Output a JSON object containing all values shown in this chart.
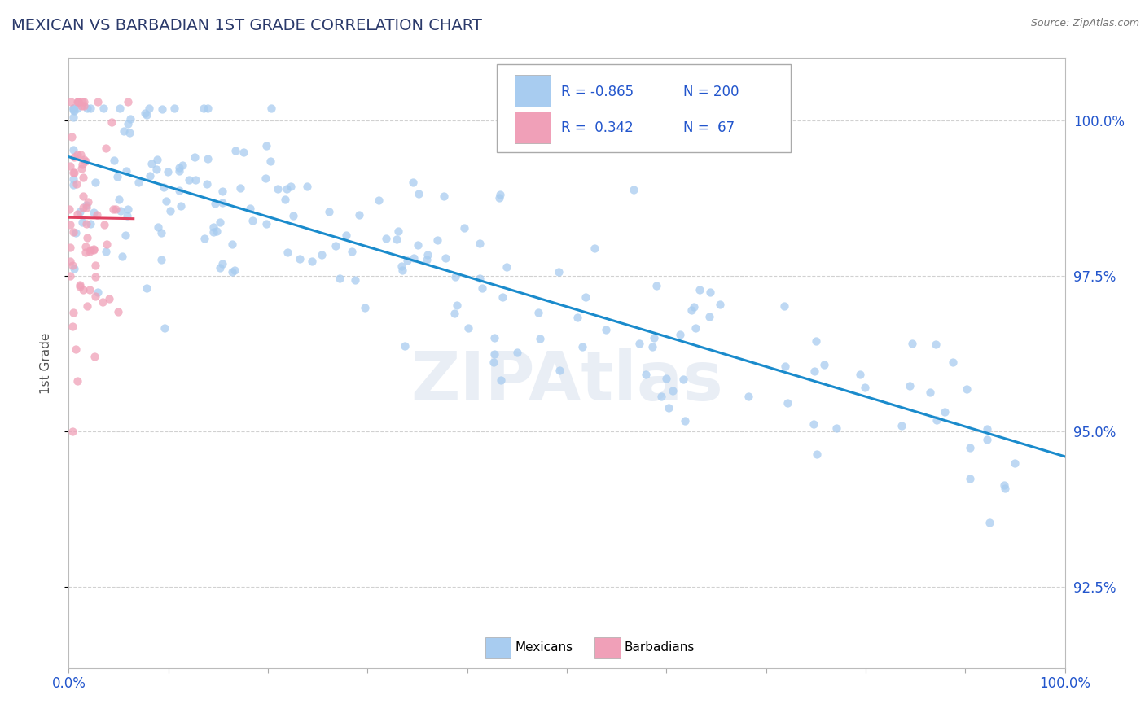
{
  "title": "MEXICAN VS BARBADIAN 1ST GRADE CORRELATION CHART",
  "source": "Source: ZipAtlas.com",
  "ylabel": "1st Grade",
  "ytick_labels": [
    "92.5%",
    "95.0%",
    "97.5%",
    "100.0%"
  ],
  "ytick_values": [
    92.5,
    95.0,
    97.5,
    100.0
  ],
  "legend_labels": [
    "Mexicans",
    "Barbadians"
  ],
  "legend_r_values": [
    "-0.865",
    "0.342"
  ],
  "legend_n_values": [
    "200",
    "67"
  ],
  "blue_color": "#A8CCF0",
  "pink_color": "#F0A0B8",
  "blue_line_color": "#1A8BCC",
  "pink_line_color": "#E04060",
  "legend_text_color": "#2255CC",
  "watermark": "ZIPAtlas",
  "xlim": [
    0.0,
    100.0
  ],
  "ylim": [
    91.2,
    101.0
  ],
  "blue_R": -0.865,
  "blue_N": 200,
  "pink_R": 0.342,
  "pink_N": 67,
  "seed": 12
}
